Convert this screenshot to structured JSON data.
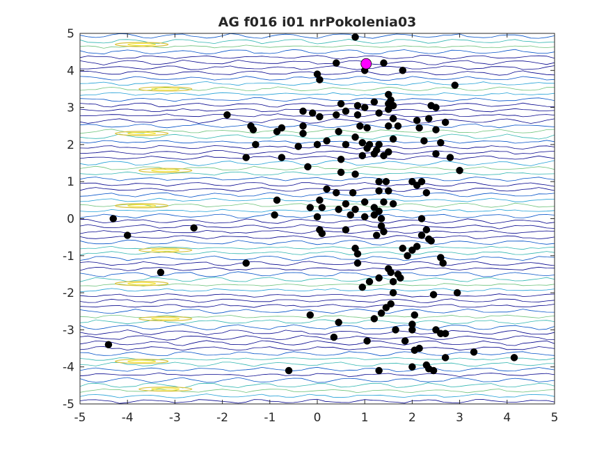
{
  "chart_data": {
    "type": "scatter",
    "title": "AG f016 i01 nrPokolenia03",
    "xlabel": "",
    "ylabel": "",
    "xlim": [
      -5,
      5
    ],
    "ylim": [
      -5,
      5
    ],
    "xticks": [
      -5,
      -4,
      -3,
      -2,
      -1,
      0,
      1,
      2,
      3,
      4,
      5
    ],
    "yticks": [
      -5,
      -4,
      -3,
      -2,
      -1,
      0,
      1,
      2,
      3,
      4,
      5
    ],
    "grid": false,
    "background": {
      "type": "contour",
      "description_colors": [
        "#00008b",
        "#0050c8",
        "#1f9fd6",
        "#2fb5b0",
        "#6cc27a",
        "#d9c23a",
        "#f5e32a"
      ],
      "bands_y": [
        4.7,
        3.5,
        2.3,
        1.3,
        0.35,
        -0.85,
        -1.75,
        -2.7,
        -3.85,
        -4.6
      ]
    },
    "series": [
      {
        "marker_color": "#000000",
        "points": [
          [
            0.8,
            4.9
          ],
          [
            0.4,
            4.2
          ],
          [
            1.0,
            4.0
          ],
          [
            1.4,
            4.2
          ],
          [
            1.8,
            4.0
          ],
          [
            0.0,
            3.9
          ],
          [
            0.05,
            3.75
          ],
          [
            2.9,
            3.6
          ],
          [
            1.5,
            3.35
          ],
          [
            1.55,
            3.2
          ],
          [
            1.5,
            3.1
          ],
          [
            1.6,
            3.05
          ],
          [
            1.5,
            2.95
          ],
          [
            1.0,
            3.0
          ],
          [
            1.2,
            3.15
          ],
          [
            0.5,
            3.1
          ],
          [
            0.85,
            3.05
          ],
          [
            2.4,
            3.05
          ],
          [
            2.5,
            3.0
          ],
          [
            -1.9,
            2.8
          ],
          [
            -0.3,
            2.9
          ],
          [
            -0.1,
            2.85
          ],
          [
            0.05,
            2.75
          ],
          [
            0.4,
            2.8
          ],
          [
            0.6,
            2.9
          ],
          [
            0.85,
            2.8
          ],
          [
            1.3,
            2.85
          ],
          [
            1.6,
            2.7
          ],
          [
            2.1,
            2.65
          ],
          [
            2.35,
            2.7
          ],
          [
            2.7,
            2.6
          ],
          [
            -1.4,
            2.5
          ],
          [
            -1.35,
            2.4
          ],
          [
            -0.75,
            2.45
          ],
          [
            -0.85,
            2.35
          ],
          [
            -0.3,
            2.5
          ],
          [
            0.9,
            2.5
          ],
          [
            1.05,
            2.45
          ],
          [
            1.5,
            2.5
          ],
          [
            1.7,
            2.5
          ],
          [
            2.15,
            2.45
          ],
          [
            2.5,
            2.4
          ],
          [
            -0.3,
            2.3
          ],
          [
            0.45,
            2.35
          ],
          [
            0.2,
            2.1
          ],
          [
            0.8,
            2.2
          ],
          [
            0.95,
            2.05
          ],
          [
            1.1,
            2.0
          ],
          [
            1.3,
            2.0
          ],
          [
            1.6,
            2.15
          ],
          [
            2.25,
            2.1
          ],
          [
            2.6,
            2.05
          ],
          [
            -1.3,
            2.0
          ],
          [
            -0.4,
            1.95
          ],
          [
            0.0,
            2.0
          ],
          [
            0.6,
            2.0
          ],
          [
            1.05,
            1.9
          ],
          [
            1.25,
            1.85
          ],
          [
            1.5,
            1.8
          ],
          [
            -1.5,
            1.65
          ],
          [
            -0.75,
            1.65
          ],
          [
            0.5,
            1.6
          ],
          [
            0.95,
            1.7
          ],
          [
            1.2,
            1.75
          ],
          [
            1.4,
            1.7
          ],
          [
            2.5,
            1.75
          ],
          [
            2.8,
            1.65
          ],
          [
            -0.2,
            1.4
          ],
          [
            0.5,
            1.25
          ],
          [
            0.8,
            1.2
          ],
          [
            3.0,
            1.3
          ],
          [
            1.3,
            1.0
          ],
          [
            1.45,
            1.0
          ],
          [
            2.0,
            1.0
          ],
          [
            2.2,
            1.0
          ],
          [
            2.1,
            0.9
          ],
          [
            0.2,
            0.8
          ],
          [
            0.4,
            0.7
          ],
          [
            0.75,
            0.7
          ],
          [
            1.3,
            0.75
          ],
          [
            1.5,
            0.75
          ],
          [
            2.3,
            0.7
          ],
          [
            -0.85,
            0.5
          ],
          [
            0.05,
            0.5
          ],
          [
            0.6,
            0.4
          ],
          [
            1.0,
            0.45
          ],
          [
            1.4,
            0.45
          ],
          [
            1.6,
            0.4
          ],
          [
            -0.15,
            0.3
          ],
          [
            0.1,
            0.3
          ],
          [
            0.45,
            0.25
          ],
          [
            0.8,
            0.25
          ],
          [
            1.2,
            0.3
          ],
          [
            1.3,
            0.2
          ],
          [
            -0.9,
            0.1
          ],
          [
            0.0,
            0.05
          ],
          [
            0.7,
            0.1
          ],
          [
            1.0,
            0.05
          ],
          [
            1.2,
            0.1
          ],
          [
            1.35,
            0.0
          ],
          [
            2.2,
            0.0
          ],
          [
            -4.3,
            0.0
          ],
          [
            -2.6,
            -0.25
          ],
          [
            0.05,
            -0.3
          ],
          [
            0.6,
            -0.3
          ],
          [
            1.35,
            -0.2
          ],
          [
            1.4,
            -0.35
          ],
          [
            1.25,
            -0.45
          ],
          [
            2.3,
            -0.3
          ],
          [
            2.2,
            -0.45
          ],
          [
            -4.0,
            -0.45
          ],
          [
            0.1,
            -0.4
          ],
          [
            1.8,
            -0.8
          ],
          [
            2.0,
            -0.85
          ],
          [
            2.1,
            -0.75
          ],
          [
            2.35,
            -0.55
          ],
          [
            2.4,
            -0.6
          ],
          [
            0.8,
            -0.8
          ],
          [
            0.85,
            -0.95
          ],
          [
            1.9,
            -1.0
          ],
          [
            2.6,
            -1.05
          ],
          [
            0.85,
            -1.2
          ],
          [
            2.65,
            -1.2
          ],
          [
            -1.5,
            -1.2
          ],
          [
            1.5,
            -1.35
          ],
          [
            1.55,
            -1.45
          ],
          [
            1.7,
            -1.5
          ],
          [
            1.75,
            -1.6
          ],
          [
            -3.3,
            -1.45
          ],
          [
            1.1,
            -1.7
          ],
          [
            1.3,
            -1.6
          ],
          [
            1.6,
            -1.7
          ],
          [
            0.95,
            -1.85
          ],
          [
            1.6,
            -2.0
          ],
          [
            2.45,
            -2.05
          ],
          [
            2.95,
            -2.0
          ],
          [
            1.55,
            -2.3
          ],
          [
            1.45,
            -2.4
          ],
          [
            -0.15,
            -2.6
          ],
          [
            1.2,
            -2.7
          ],
          [
            1.35,
            -2.55
          ],
          [
            2.05,
            -2.6
          ],
          [
            0.45,
            -2.8
          ],
          [
            2.0,
            -2.85
          ],
          [
            1.65,
            -3.0
          ],
          [
            2.0,
            -3.0
          ],
          [
            2.5,
            -3.0
          ],
          [
            2.6,
            -3.1
          ],
          [
            2.7,
            -3.1
          ],
          [
            1.85,
            -3.3
          ],
          [
            0.35,
            -3.2
          ],
          [
            1.05,
            -3.3
          ],
          [
            2.15,
            -3.5
          ],
          [
            2.05,
            -3.55
          ],
          [
            -4.4,
            -3.4
          ],
          [
            3.3,
            -3.6
          ],
          [
            2.7,
            -3.75
          ],
          [
            4.15,
            -3.75
          ],
          [
            2.0,
            -4.0
          ],
          [
            2.3,
            -3.95
          ],
          [
            2.35,
            -4.05
          ],
          [
            2.45,
            -4.1
          ],
          [
            -0.6,
            -4.1
          ],
          [
            1.3,
            -4.1
          ]
        ]
      },
      {
        "marker_color": "#ff00ff",
        "points": [
          [
            1.03,
            4.18
          ]
        ]
      }
    ]
  }
}
